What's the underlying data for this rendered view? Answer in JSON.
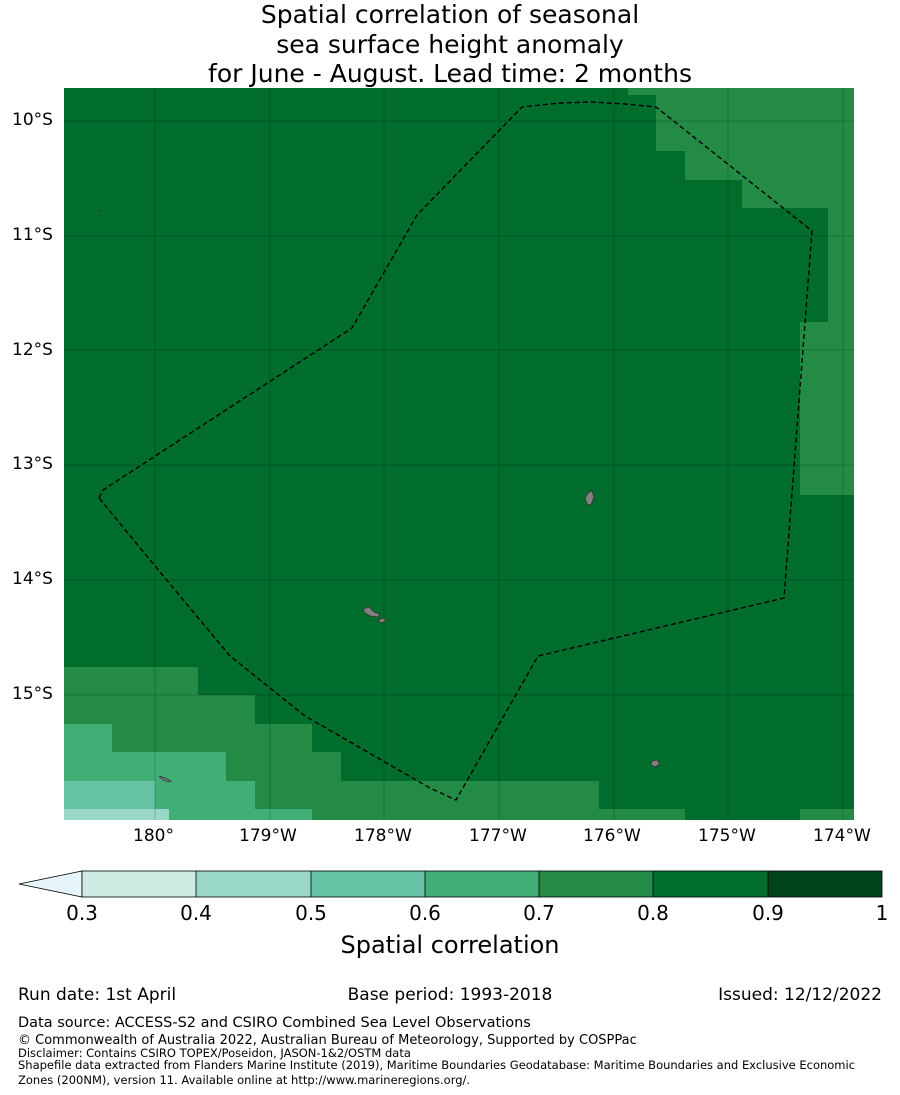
{
  "title": {
    "line1": "Spatial correlation of seasonal",
    "line2": "sea surface height anomaly",
    "line3": "for June - August. Lead time: 2 months"
  },
  "axes": {
    "lat_labels": [
      "10°S",
      "11°S",
      "12°S",
      "13°S",
      "14°S",
      "15°S"
    ],
    "lon_labels": [
      "180°",
      "179°W",
      "178°W",
      "177°W",
      "176°W",
      "175°W",
      "174°W"
    ]
  },
  "colorbar": {
    "label": "Spatial correlation",
    "ticks": [
      "0.3",
      "0.4",
      "0.5",
      "0.6",
      "0.7",
      "0.8",
      "0.9",
      "1"
    ],
    "colors": [
      "#cdebe3",
      "#99d8c8",
      "#66c2a4",
      "#41ae76",
      "#238b45",
      "#006d2c",
      "#00441b"
    ],
    "under_color": "#e5f5f9"
  },
  "footer": {
    "run_date": "Run date: 1st April",
    "base_period": "Base period: 1993-2018",
    "issued": "Issued: 12/12/2022",
    "data_source": "Data source: ACCESS-S2 and CSIRO Combined Sea Level Observations",
    "copyright": "© Commonwealth of Australia 2022, Australian Bureau of Meteorology, Supported by COSPPac",
    "disclaimer": "Disclaimer: Contains CSIRO TOPEX/Poseidon, JASON-1&2/OSTM data",
    "shapefile1": "Shapefile data extracted from Flanders Marine Institute (2019), Maritime Boundaries Geodatabase: Maritime Boundaries and Exclusive Economic",
    "shapefile2": "Zones (200NM), version 11. Available online at http://www.marineregions.org/."
  },
  "map_colors": {
    "class_0_8_0_9": "#006d2c",
    "class_0_7_0_8": "#238b45",
    "class_0_6_0_7": "#41ae76",
    "class_0_5_0_6": "#66c2a4",
    "class_0_4_0_5": "#99d8c8",
    "land": "#808080",
    "eez_line": "#000000"
  }
}
